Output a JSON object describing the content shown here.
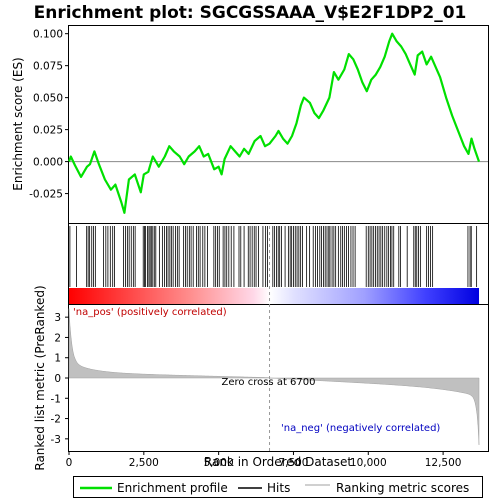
{
  "chart_data": {
    "type": "line",
    "title": "Enrichment plot: SGCGSSAAA_V$E2F1DP2_01",
    "xlabel": "Rank in Ordered Dataset",
    "ylabel_top": "Enrichment score (ES)",
    "ylabel_bottom": "Ranked list metric (PreRanked)",
    "xlim": [
      0,
      14000
    ],
    "x_ticks": [
      0,
      2500,
      5000,
      7500,
      10000,
      12500
    ],
    "x_tick_labels": [
      "0",
      "2,500",
      "5,000",
      "7,500",
      "10,000",
      "12,500"
    ],
    "es_ylim": [
      -0.048,
      0.106
    ],
    "es_ticks": [
      -0.025,
      0.0,
      0.025,
      0.05,
      0.075,
      0.1
    ],
    "es_tick_labels": [
      "-0.025",
      "0.000",
      "0.025",
      "0.050",
      "0.075",
      "0.100"
    ],
    "metric_ylim": [
      -3.6,
      3.6
    ],
    "metric_ticks": [
      -3,
      -2,
      -1,
      0,
      1,
      2,
      3
    ],
    "metric_tick_labels": [
      "-3",
      "-2",
      "-1",
      "0",
      "1",
      "2",
      "3"
    ],
    "zero_cross": 6700,
    "zero_cross_label": "Zero cross at 6700",
    "pos_label": "'na_pos' (positively correlated)",
    "neg_label": "'na_neg' (negatively correlated)",
    "n_genes": 13700,
    "enrichment_profile": [
      [
        0,
        0.0
      ],
      [
        60,
        0.004
      ],
      [
        200,
        -0.003
      ],
      [
        400,
        -0.012
      ],
      [
        600,
        -0.004
      ],
      [
        700,
        -0.002
      ],
      [
        850,
        0.008
      ],
      [
        1000,
        -0.002
      ],
      [
        1200,
        -0.014
      ],
      [
        1400,
        -0.022
      ],
      [
        1550,
        -0.018
      ],
      [
        1750,
        -0.032
      ],
      [
        1850,
        -0.04
      ],
      [
        2000,
        -0.014
      ],
      [
        2200,
        -0.01
      ],
      [
        2400,
        -0.024
      ],
      [
        2500,
        -0.01
      ],
      [
        2650,
        -0.008
      ],
      [
        2800,
        0.004
      ],
      [
        3000,
        -0.004
      ],
      [
        3200,
        0.004
      ],
      [
        3350,
        0.012
      ],
      [
        3500,
        0.008
      ],
      [
        3700,
        0.004
      ],
      [
        3850,
        -0.002
      ],
      [
        4000,
        0.004
      ],
      [
        4200,
        0.008
      ],
      [
        4350,
        0.012
      ],
      [
        4500,
        0.004
      ],
      [
        4650,
        0.006
      ],
      [
        4850,
        -0.006
      ],
      [
        5000,
        -0.004
      ],
      [
        5100,
        -0.01
      ],
      [
        5200,
        0.002
      ],
      [
        5400,
        0.012
      ],
      [
        5550,
        0.008
      ],
      [
        5700,
        0.004
      ],
      [
        5850,
        0.01
      ],
      [
        6000,
        0.006
      ],
      [
        6200,
        0.016
      ],
      [
        6400,
        0.02
      ],
      [
        6550,
        0.012
      ],
      [
        6700,
        0.014
      ],
      [
        6900,
        0.02
      ],
      [
        7000,
        0.024
      ],
      [
        7150,
        0.018
      ],
      [
        7300,
        0.014
      ],
      [
        7450,
        0.02
      ],
      [
        7600,
        0.03
      ],
      [
        7750,
        0.044
      ],
      [
        7850,
        0.05
      ],
      [
        8050,
        0.046
      ],
      [
        8200,
        0.038
      ],
      [
        8350,
        0.034
      ],
      [
        8500,
        0.04
      ],
      [
        8700,
        0.05
      ],
      [
        8850,
        0.07
      ],
      [
        9000,
        0.064
      ],
      [
        9200,
        0.072
      ],
      [
        9350,
        0.084
      ],
      [
        9500,
        0.08
      ],
      [
        9650,
        0.072
      ],
      [
        9800,
        0.062
      ],
      [
        9950,
        0.055
      ],
      [
        10100,
        0.064
      ],
      [
        10250,
        0.068
      ],
      [
        10400,
        0.074
      ],
      [
        10550,
        0.082
      ],
      [
        10700,
        0.094
      ],
      [
        10800,
        0.1
      ],
      [
        10950,
        0.094
      ],
      [
        11100,
        0.09
      ],
      [
        11250,
        0.084
      ],
      [
        11400,
        0.076
      ],
      [
        11550,
        0.068
      ],
      [
        11650,
        0.083
      ],
      [
        11800,
        0.086
      ],
      [
        11950,
        0.076
      ],
      [
        12100,
        0.082
      ],
      [
        12250,
        0.074
      ],
      [
        12400,
        0.066
      ],
      [
        12600,
        0.05
      ],
      [
        12800,
        0.036
      ],
      [
        13000,
        0.024
      ],
      [
        13200,
        0.012
      ],
      [
        13350,
        0.006
      ],
      [
        13450,
        0.018
      ],
      [
        13550,
        0.01
      ],
      [
        13700,
        0.0
      ]
    ],
    "hits": [
      30,
      250,
      590,
      640,
      690,
      760,
      820,
      880,
      1150,
      1230,
      1300,
      1380,
      1460,
      1520,
      1820,
      1890,
      1950,
      2010,
      2080,
      2150,
      2210,
      2480,
      2520,
      2560,
      2620,
      2670,
      2710,
      2750,
      2800,
      2850,
      2900,
      3020,
      3120,
      3190,
      3260,
      3310,
      3370,
      3420,
      3480,
      3560,
      3620,
      3680,
      3830,
      3890,
      3950,
      4020,
      4080,
      4150,
      4260,
      4320,
      4380,
      4470,
      4540,
      4630,
      4840,
      4900,
      4960,
      5020,
      5150,
      5210,
      5270,
      5340,
      5420,
      5510,
      5680,
      5740,
      5850,
      5990,
      6050,
      6120,
      6190,
      6250,
      6330,
      6480,
      6570,
      6630,
      6810,
      6870,
      6930,
      6990,
      7040,
      7100,
      7220,
      7330,
      7390,
      7440,
      7500,
      7560,
      7620,
      7680,
      7740,
      7800,
      7940,
      8040,
      8160,
      8240,
      8300,
      8380,
      8440,
      8500,
      8560,
      8620,
      8680,
      8720,
      8790,
      8850,
      8910,
      9000,
      9080,
      9140,
      9200,
      9270,
      9340,
      9420,
      9490,
      9560,
      9930,
      10000,
      10060,
      10120,
      10180,
      10240,
      10300,
      10360,
      10420,
      10480,
      10550,
      10620,
      10680,
      10740,
      10790,
      10850,
      11020,
      11080,
      11300,
      11520,
      11570,
      11620,
      11680,
      11740,
      11950,
      12010,
      12080,
      12150,
      13330,
      13400,
      13440,
      13620
    ]
  },
  "legend": {
    "items": [
      {
        "label": "Enrichment profile",
        "color": "#00e000"
      },
      {
        "label": "Hits",
        "color": "#000000"
      },
      {
        "label": "Ranking metric scores",
        "color": "#c0c0c0"
      }
    ]
  },
  "colors": {
    "profile": "#00e000",
    "metric_fill": "#c0c0c0",
    "frame": "#000000",
    "pos_text": "#c00000",
    "neg_text": "#0000c0",
    "heat_pos": "#ff0000",
    "heat_neg": "#0000ff"
  }
}
